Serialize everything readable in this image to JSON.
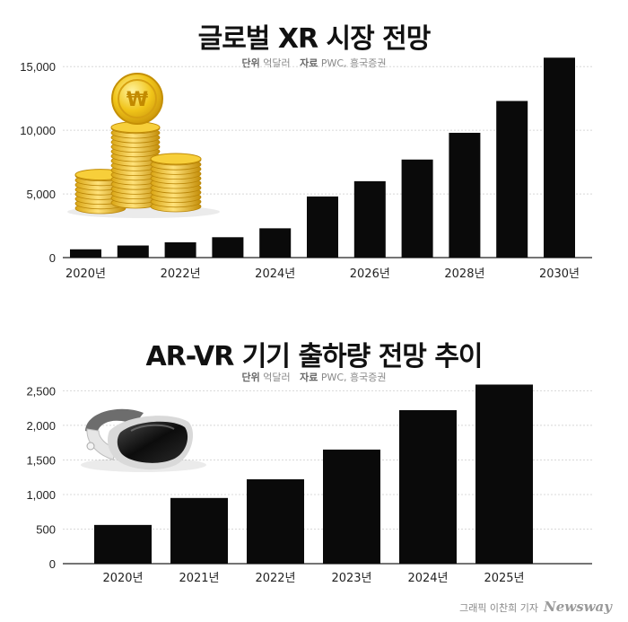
{
  "chart_data": [
    {
      "type": "bar",
      "title": "글로벌 XR 시장 전망",
      "unit_key": "단위",
      "unit_value": "억달러",
      "source_key": "자료",
      "source_value": "PWC, 흥국증권",
      "categories": [
        "2020년",
        "2021년",
        "2022년",
        "2023년",
        "2024년",
        "2025년",
        "2026년",
        "2027년",
        "2028년",
        "2029년",
        "2030년"
      ],
      "x_tick_labels": [
        "2020년",
        "2022년",
        "2024년",
        "2026년",
        "2028년",
        "2030년"
      ],
      "values": [
        650,
        950,
        1200,
        1600,
        2300,
        4800,
        6000,
        7700,
        9800,
        12300,
        15700
      ],
      "y_tick_labels": [
        "0",
        "5,000",
        "10,000",
        "15,000"
      ],
      "ylim": [
        0,
        16000
      ],
      "grid": true,
      "bar_color": "#0a0a0a"
    },
    {
      "type": "bar",
      "title": "AR-VR 기기 출하량 전망 추이",
      "unit_key": "단위",
      "unit_value": "억달러",
      "source_key": "자료",
      "source_value": "PWC, 흥국증권",
      "categories": [
        "2020년",
        "2021년",
        "2022년",
        "2023년",
        "2024년",
        "2025년"
      ],
      "x_tick_labels": [
        "2020년",
        "2021년",
        "2022년",
        "2023년",
        "2024년",
        "2025년"
      ],
      "values": [
        560,
        950,
        1220,
        1650,
        2220,
        2590
      ],
      "y_tick_labels": [
        "0",
        "500",
        "1,000",
        "1,500",
        "2,000",
        "2,500"
      ],
      "ylim": [
        0,
        2700
      ],
      "grid": true,
      "bar_color": "#0a0a0a"
    }
  ],
  "credit": {
    "text": "그래픽 이찬희 기자",
    "brand": "Newsway"
  }
}
